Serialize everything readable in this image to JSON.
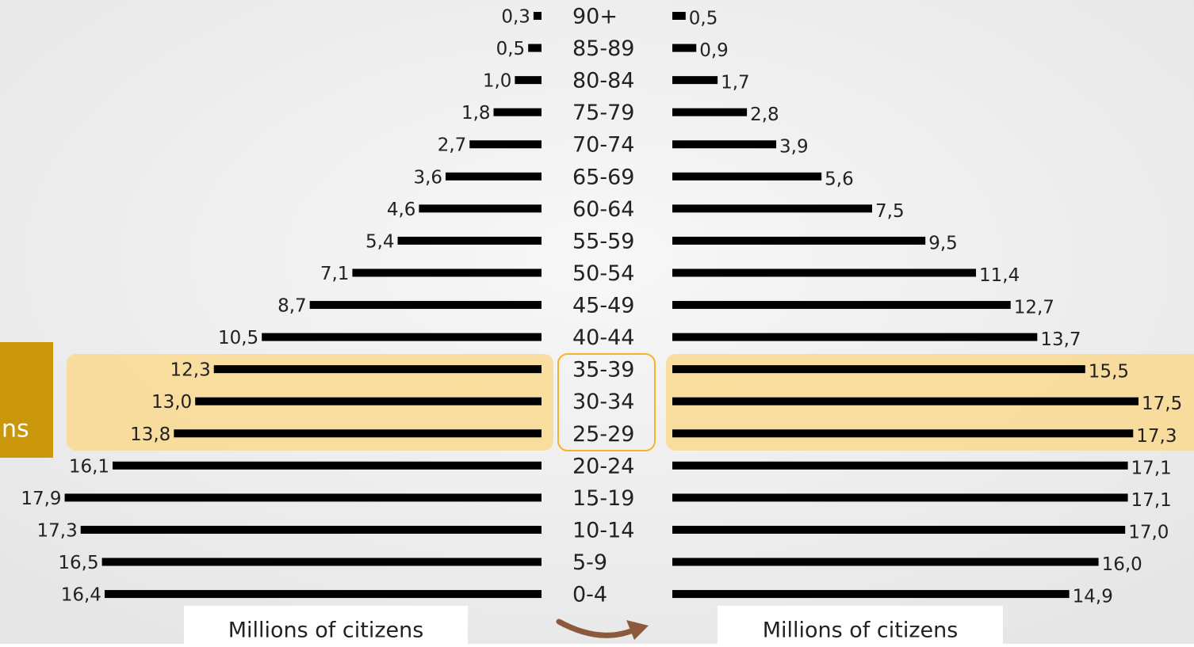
{
  "chart_data": {
    "type": "pyramid",
    "categories": [
      "90+",
      "85-89",
      "80-84",
      "75-79",
      "70-74",
      "65-69",
      "60-64",
      "55-59",
      "50-54",
      "45-49",
      "40-44",
      "35-39",
      "30-34",
      "25-29",
      "20-24",
      "15-19",
      "10-14",
      "5-9",
      "0-4"
    ],
    "series": [
      {
        "color": "#000000",
        "values": [
          0.3,
          0.5,
          1.0,
          1.8,
          2.7,
          3.6,
          4.6,
          5.4,
          7.1,
          8.7,
          10.5,
          12.3,
          13.0,
          13.8,
          16.1,
          17.9,
          17.3,
          16.5,
          16.4
        ],
        "value_labels": [
          "0,3",
          "0,5",
          "1,0",
          "1,8",
          "2,7",
          "3,6",
          "4,6",
          "5,4",
          "7,1",
          "8,7",
          "10,5",
          "12,3",
          "13,0",
          "13,8",
          "16,1",
          "17,9",
          "17,3",
          "16,5",
          "16,4"
        ],
        "xlabel": "Millions of citizens"
      },
      {
        "color": "#000000",
        "values": [
          0.5,
          0.9,
          1.7,
          2.8,
          3.9,
          5.6,
          7.5,
          9.5,
          11.4,
          12.7,
          13.7,
          15.5,
          17.5,
          17.3,
          17.1,
          17.1,
          17.0,
          16.0,
          14.9
        ],
        "value_labels": [
          "0,5",
          "0,9",
          "1,7",
          "2,8",
          "3,9",
          "5,6",
          "7,5",
          "9,5",
          "11,4",
          "12,7",
          "13,7",
          "15,5",
          "17,5",
          "17,3",
          "17,1",
          "17,1",
          "17,0",
          "16,0",
          "14,9"
        ],
        "xlabel": "Millions of citizens"
      }
    ],
    "side_label": "ns"
  }
}
